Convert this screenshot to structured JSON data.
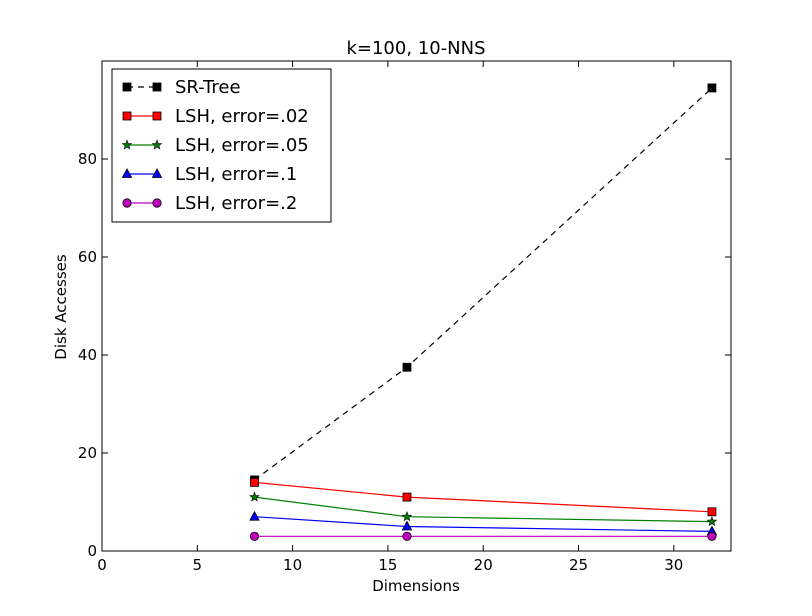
{
  "chart_data": {
    "type": "line",
    "title": "k=100, 10-NNS",
    "xlabel": "Dimensions",
    "ylabel": "Disk Accesses",
    "xlim": [
      0,
      33
    ],
    "ylim": [
      0,
      100
    ],
    "x_ticks": [
      0,
      5,
      10,
      15,
      20,
      25,
      30
    ],
    "y_ticks": [
      0,
      20,
      40,
      60,
      80
    ],
    "grid": false,
    "legend_position": "top-left",
    "x": [
      8,
      16,
      32
    ],
    "series": [
      {
        "name": "SR-Tree",
        "values": [
          14.5,
          37.5,
          94.5
        ],
        "color": "#000000",
        "marker": "square",
        "dashed": true
      },
      {
        "name": "LSH, error=.02",
        "values": [
          14,
          11,
          8
        ],
        "color": "#ff0000",
        "marker": "square",
        "dashed": false
      },
      {
        "name": "LSH, error=.05",
        "values": [
          11,
          7,
          6
        ],
        "color": "#008000",
        "marker": "star",
        "dashed": false
      },
      {
        "name": "LSH, error=.1",
        "values": [
          7,
          5,
          4
        ],
        "color": "#0000ff",
        "marker": "triangle",
        "dashed": false
      },
      {
        "name": "LSH, error=.2",
        "values": [
          3,
          3,
          3
        ],
        "color": "#bf00bf",
        "marker": "circle",
        "dashed": false
      }
    ]
  }
}
